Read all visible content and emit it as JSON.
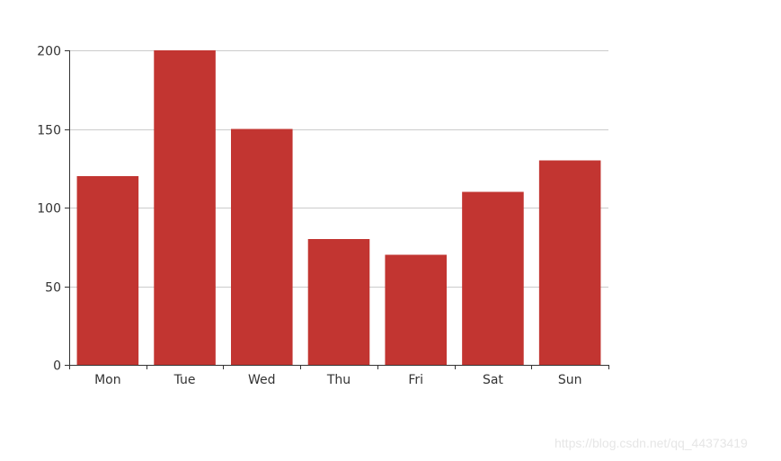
{
  "chart_data": {
    "type": "bar",
    "categories": [
      "Mon",
      "Tue",
      "Wed",
      "Thu",
      "Fri",
      "Sat",
      "Sun"
    ],
    "values": [
      120,
      200,
      150,
      80,
      70,
      110,
      130
    ],
    "ylim": [
      0,
      200
    ],
    "y_ticks": [
      0,
      50,
      100,
      150,
      200
    ],
    "grid": true,
    "colors": {
      "bar": "#c23531",
      "grid": "#cccccc",
      "axis": "#333333",
      "text": "#333333"
    }
  },
  "watermark": "https://blog.csdn.net/qq_44373419"
}
